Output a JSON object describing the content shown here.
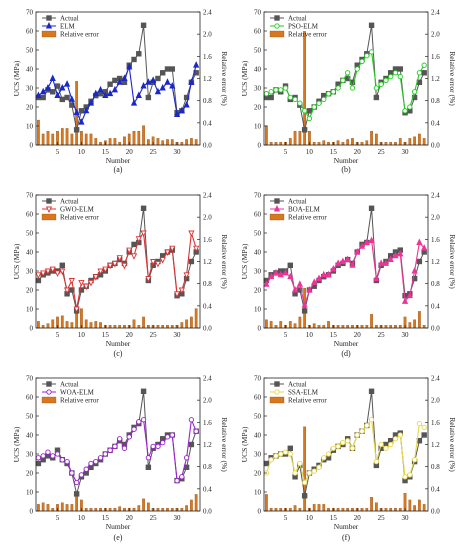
{
  "chart_data": [
    {
      "type": "line",
      "panel": "(a)",
      "x": [
        1,
        2,
        3,
        4,
        5,
        6,
        7,
        8,
        9,
        10,
        11,
        12,
        13,
        14,
        15,
        16,
        17,
        18,
        19,
        20,
        21,
        22,
        23,
        24,
        25,
        26,
        27,
        28,
        29,
        30,
        31,
        32,
        33,
        34
      ],
      "xlabel": "Number",
      "ylabel": "UCS (MPa)",
      "ylabel2": "Relative error (%)",
      "ylim": [
        0,
        70
      ],
      "y2lim": [
        0,
        2.4
      ],
      "xticks": [
        5,
        10,
        15,
        20,
        25,
        30
      ],
      "yticks": [
        0,
        10,
        20,
        30,
        40,
        50,
        60,
        70
      ],
      "y2ticks": [
        0.0,
        0.4,
        0.8,
        1.2,
        1.6,
        2.0,
        2.4
      ],
      "legend_position": "top-left",
      "series": [
        {
          "name": "Actual",
          "color": "#555555",
          "marker": "square",
          "values": [
            25,
            25,
            29,
            28,
            31,
            24,
            25,
            21,
            8,
            18,
            20,
            23,
            26,
            27,
            28,
            32,
            34,
            35,
            33,
            42,
            45,
            48,
            63,
            25,
            33,
            35,
            38,
            40,
            40,
            17,
            18,
            25,
            33,
            38
          ]
        },
        {
          "name": "ELM",
          "color": "#1a28c8",
          "marker": "triangle",
          "values": [
            26,
            28,
            30,
            35,
            26,
            30,
            32,
            24,
            17,
            12,
            18,
            22,
            27,
            29,
            26,
            27,
            29,
            33,
            35,
            41,
            22,
            26,
            31,
            33,
            34,
            28,
            30,
            33,
            31,
            16,
            18,
            21,
            33,
            42
          ]
        }
      ],
      "bars": {
        "name": "Relative error",
        "color": "#d9771e",
        "values": [
          0.45,
          0.2,
          0.25,
          0.2,
          0.25,
          0.3,
          0.3,
          0.2,
          1.15,
          0.25,
          0.2,
          0.2,
          0.12,
          0.05,
          0.08,
          0.12,
          0.12,
          0.05,
          0.15,
          0.2,
          0.25,
          0.25,
          0.35,
          0.1,
          0.15,
          0.12,
          0.08,
          0.1,
          0.1,
          0.05,
          0.05,
          0.1,
          0.12,
          0.1
        ]
      }
    },
    {
      "type": "line",
      "panel": "(b)",
      "x": [
        1,
        2,
        3,
        4,
        5,
        6,
        7,
        8,
        9,
        10,
        11,
        12,
        13,
        14,
        15,
        16,
        17,
        18,
        19,
        20,
        21,
        22,
        23,
        24,
        25,
        26,
        27,
        28,
        29,
        30,
        31,
        32,
        33,
        34
      ],
      "xlabel": "Number",
      "ylabel": "UCS (MPa)",
      "ylabel2": "Relative error (%)",
      "ylim": [
        0,
        70
      ],
      "y2lim": [
        0,
        2.4
      ],
      "xticks": [
        5,
        10,
        15,
        20,
        25,
        30
      ],
      "yticks": [
        0,
        10,
        20,
        30,
        40,
        50,
        60,
        70
      ],
      "y2ticks": [
        0.0,
        0.4,
        0.8,
        1.2,
        1.6,
        2.0,
        2.4
      ],
      "legend_position": "top-left",
      "series": [
        {
          "name": "Actual",
          "color": "#555555",
          "marker": "square",
          "values": [
            25,
            25,
            29,
            28,
            31,
            24,
            25,
            21,
            8,
            18,
            20,
            23,
            26,
            27,
            28,
            32,
            34,
            35,
            33,
            42,
            45,
            48,
            63,
            25,
            33,
            35,
            38,
            40,
            40,
            17,
            18,
            25,
            33,
            38
          ]
        },
        {
          "name": "PSO-ELM",
          "color": "#22cc22",
          "marker": "circle",
          "values": [
            27,
            28,
            29,
            29,
            30,
            25,
            24,
            22,
            18,
            14,
            20,
            22,
            24,
            27,
            28,
            30,
            34,
            38,
            30,
            40,
            44,
            47,
            49,
            30,
            32,
            34,
            36,
            38,
            36,
            18,
            20,
            28,
            38,
            42
          ]
        }
      ],
      "bars": {
        "name": "Relative error",
        "color": "#d9771e",
        "values": [
          0.35,
          0.05,
          0.05,
          0.05,
          0.05,
          0.12,
          0.25,
          0.25,
          2.05,
          0.25,
          0.05,
          0.05,
          0.08,
          0.05,
          0.05,
          0.08,
          0.05,
          0.1,
          0.12,
          0.05,
          0.05,
          0.08,
          0.25,
          0.2,
          0.05,
          0.05,
          0.05,
          0.05,
          0.12,
          0.05,
          0.12,
          0.15,
          0.2,
          0.12
        ]
      }
    },
    {
      "type": "line",
      "panel": "(c)",
      "x": [
        1,
        2,
        3,
        4,
        5,
        6,
        7,
        8,
        9,
        10,
        11,
        12,
        13,
        14,
        15,
        16,
        17,
        18,
        19,
        20,
        21,
        22,
        23,
        24,
        25,
        26,
        27,
        28,
        29,
        30,
        31,
        32,
        33,
        34
      ],
      "xlabel": "Number",
      "ylabel": "UCS (MPa)",
      "ylabel2": "Relative error (%)",
      "ylim": [
        0,
        70
      ],
      "y2lim": [
        0,
        2.4
      ],
      "xticks": [
        5,
        10,
        15,
        20,
        25,
        30
      ],
      "yticks": [
        0,
        10,
        20,
        30,
        40,
        50,
        60,
        70
      ],
      "y2ticks": [
        0.0,
        0.4,
        0.8,
        1.2,
        1.6,
        2.0,
        2.4
      ],
      "legend_position": "top-left",
      "series": [
        {
          "name": "Actual",
          "color": "#555555",
          "marker": "square",
          "values": [
            25,
            28,
            29,
            30,
            30,
            33,
            18,
            20,
            9,
            20,
            22,
            25,
            27,
            28,
            30,
            33,
            34,
            36,
            34,
            40,
            44,
            45,
            63,
            25,
            33,
            35,
            38,
            40,
            41,
            17,
            18,
            26,
            35,
            40
          ]
        },
        {
          "name": "GWO-ELM",
          "color": "#dd3333",
          "marker": "triangle-down",
          "values": [
            28,
            29,
            30,
            31,
            29,
            30,
            20,
            25,
            10,
            24,
            22,
            24,
            27,
            30,
            31,
            33,
            34,
            37,
            33,
            41,
            38,
            47,
            50,
            26,
            35,
            34,
            36,
            40,
            42,
            18,
            20,
            28,
            50,
            42
          ]
        }
      ],
      "bars": {
        "name": "Relative error",
        "color": "#d9771e",
        "values": [
          0.12,
          0.05,
          0.08,
          0.15,
          0.2,
          0.22,
          0.12,
          0.1,
          0.35,
          0.35,
          0.15,
          0.1,
          0.12,
          0.1,
          0.05,
          0.05,
          0.05,
          0.05,
          0.05,
          0.05,
          0.15,
          0.05,
          0.2,
          0.05,
          0.05,
          0.05,
          0.05,
          0.05,
          0.05,
          0.05,
          0.1,
          0.15,
          0.2,
          0.35
        ]
      }
    },
    {
      "type": "line",
      "panel": "(d)",
      "x": [
        1,
        2,
        3,
        4,
        5,
        6,
        7,
        8,
        9,
        10,
        11,
        12,
        13,
        14,
        15,
        16,
        17,
        18,
        19,
        20,
        21,
        22,
        23,
        24,
        25,
        26,
        27,
        28,
        29,
        30,
        31,
        32,
        33,
        34
      ],
      "xlabel": "Number",
      "ylabel": "UCS (MPa)",
      "ylabel2": "Relative error (%)",
      "ylim": [
        0,
        70
      ],
      "y2lim": [
        0,
        2.4
      ],
      "xticks": [
        5,
        10,
        15,
        20,
        25,
        30
      ],
      "yticks": [
        0,
        10,
        20,
        30,
        40,
        50,
        60,
        70
      ],
      "y2ticks": [
        0.0,
        0.4,
        0.8,
        1.2,
        1.6,
        2.0,
        2.4
      ],
      "legend_position": "top-left",
      "series": [
        {
          "name": "Actual",
          "color": "#555555",
          "marker": "square",
          "values": [
            25,
            28,
            29,
            30,
            30,
            33,
            18,
            20,
            9,
            20,
            22,
            25,
            27,
            28,
            30,
            33,
            34,
            36,
            34,
            40,
            44,
            45,
            63,
            25,
            33,
            35,
            38,
            40,
            41,
            17,
            18,
            26,
            35,
            40
          ]
        },
        {
          "name": "BOA-ELM",
          "color": "#ee3399",
          "marker": "triangle",
          "values": [
            23,
            27,
            29,
            28,
            29,
            27,
            20,
            23,
            12,
            20,
            24,
            26,
            28,
            28,
            31,
            34,
            35,
            36,
            33,
            40,
            43,
            45,
            46,
            26,
            34,
            34,
            36,
            38,
            39,
            14,
            17,
            30,
            45,
            42
          ]
        }
      ],
      "bars": {
        "name": "Relative error",
        "color": "#d9771e",
        "values": [
          0.15,
          0.12,
          0.05,
          0.12,
          0.05,
          0.12,
          0.08,
          0.2,
          0.72,
          0.05,
          0.08,
          0.05,
          0.05,
          0.12,
          0.05,
          0.05,
          0.05,
          0.05,
          0.05,
          0.05,
          0.05,
          0.05,
          0.25,
          0.05,
          0.05,
          0.05,
          0.05,
          0.05,
          0.05,
          0.2,
          0.1,
          0.15,
          0.3,
          0.05
        ]
      }
    },
    {
      "type": "line",
      "panel": "(e)",
      "x": [
        1,
        2,
        3,
        4,
        5,
        6,
        7,
        8,
        9,
        10,
        11,
        12,
        13,
        14,
        15,
        16,
        17,
        18,
        19,
        20,
        21,
        22,
        23,
        24,
        25,
        26,
        27,
        28,
        29,
        30,
        31,
        32,
        33,
        34
      ],
      "xlabel": "Number",
      "ylabel": "UCS (MPa)",
      "ylabel2": "Relative error (%)",
      "ylim": [
        0,
        70
      ],
      "y2lim": [
        0,
        2.4
      ],
      "xticks": [
        5,
        10,
        15,
        20,
        25,
        30
      ],
      "yticks": [
        0,
        10,
        20,
        30,
        40,
        50,
        60,
        70
      ],
      "y2ticks": [
        0.0,
        0.4,
        0.8,
        1.2,
        1.6,
        2.0,
        2.4
      ],
      "legend_position": "top-left",
      "series": [
        {
          "name": "Actual",
          "color": "#555555",
          "marker": "square",
          "values": [
            25,
            27,
            29,
            28,
            32,
            27,
            25,
            20,
            9,
            18,
            20,
            23,
            25,
            27,
            30,
            32,
            34,
            37,
            35,
            40,
            44,
            46,
            63,
            23,
            33,
            35,
            38,
            40,
            40,
            16,
            17,
            23,
            35,
            42
          ]
        },
        {
          "name": "WOA-ELM",
          "color": "#9922cc",
          "marker": "circle",
          "values": [
            28,
            29,
            31,
            29,
            30,
            27,
            26,
            20,
            15,
            19,
            22,
            25,
            26,
            28,
            30,
            32,
            34,
            38,
            33,
            39,
            43,
            47,
            48,
            28,
            34,
            34,
            36,
            39,
            40,
            16,
            18,
            28,
            48,
            42
          ]
        }
      ],
      "bars": {
        "name": "Relative error",
        "color": "#d9771e",
        "values": [
          0.12,
          0.15,
          0.12,
          0.05,
          0.12,
          0.15,
          0.12,
          0.12,
          0.32,
          0.2,
          0.05,
          0.05,
          0.05,
          0.05,
          0.05,
          0.05,
          0.05,
          0.08,
          0.05,
          0.05,
          0.05,
          0.1,
          0.22,
          0.15,
          0.05,
          0.05,
          0.05,
          0.05,
          0.05,
          0.05,
          0.05,
          0.1,
          0.2,
          0.3
        ]
      }
    },
    {
      "type": "line",
      "panel": "(f)",
      "x": [
        1,
        2,
        3,
        4,
        5,
        6,
        7,
        8,
        9,
        10,
        11,
        12,
        13,
        14,
        15,
        16,
        17,
        18,
        19,
        20,
        21,
        22,
        23,
        24,
        25,
        26,
        27,
        28,
        29,
        30,
        31,
        32,
        33,
        34
      ],
      "xlabel": "Number",
      "ylabel": "UCS (MPa)",
      "ylabel2": "Relative error (%)",
      "ylim": [
        0,
        70
      ],
      "y2lim": [
        0,
        2.4
      ],
      "xticks": [
        5,
        10,
        15,
        20,
        25,
        30
      ],
      "yticks": [
        0,
        10,
        20,
        30,
        40,
        50,
        60,
        70
      ],
      "y2ticks": [
        0.0,
        0.4,
        0.8,
        1.2,
        1.6,
        2.0,
        2.4
      ],
      "legend_position": "top-left",
      "series": [
        {
          "name": "Actual",
          "color": "#555555",
          "marker": "square",
          "values": [
            25,
            28,
            29,
            30,
            30,
            33,
            18,
            24,
            8,
            20,
            22,
            24,
            27,
            28,
            32,
            34,
            35,
            38,
            33,
            40,
            42,
            45,
            63,
            24,
            33,
            35,
            37,
            40,
            41,
            16,
            18,
            26,
            37,
            40
          ]
        },
        {
          "name": "SSA-ELM",
          "color": "#e8d84a",
          "marker": "circle",
          "values": [
            20,
            27,
            29,
            30,
            31,
            30,
            20,
            25,
            15,
            20,
            21,
            23,
            28,
            30,
            33,
            34,
            36,
            37,
            33,
            40,
            42,
            45,
            48,
            26,
            35,
            33,
            35,
            38,
            40,
            18,
            19,
            27,
            46,
            44
          ]
        }
      ],
      "bars": {
        "name": "Relative error",
        "color": "#d9771e",
        "values": [
          0.3,
          0.05,
          0.05,
          0.05,
          0.05,
          0.05,
          0.1,
          0.05,
          1.52,
          0.05,
          0.12,
          0.12,
          0.12,
          0.05,
          0.05,
          0.05,
          0.05,
          0.05,
          0.05,
          0.05,
          0.05,
          0.05,
          0.25,
          0.15,
          0.05,
          0.05,
          0.05,
          0.05,
          0.05,
          0.32,
          0.2,
          0.1,
          0.2,
          0.12
        ]
      }
    }
  ]
}
